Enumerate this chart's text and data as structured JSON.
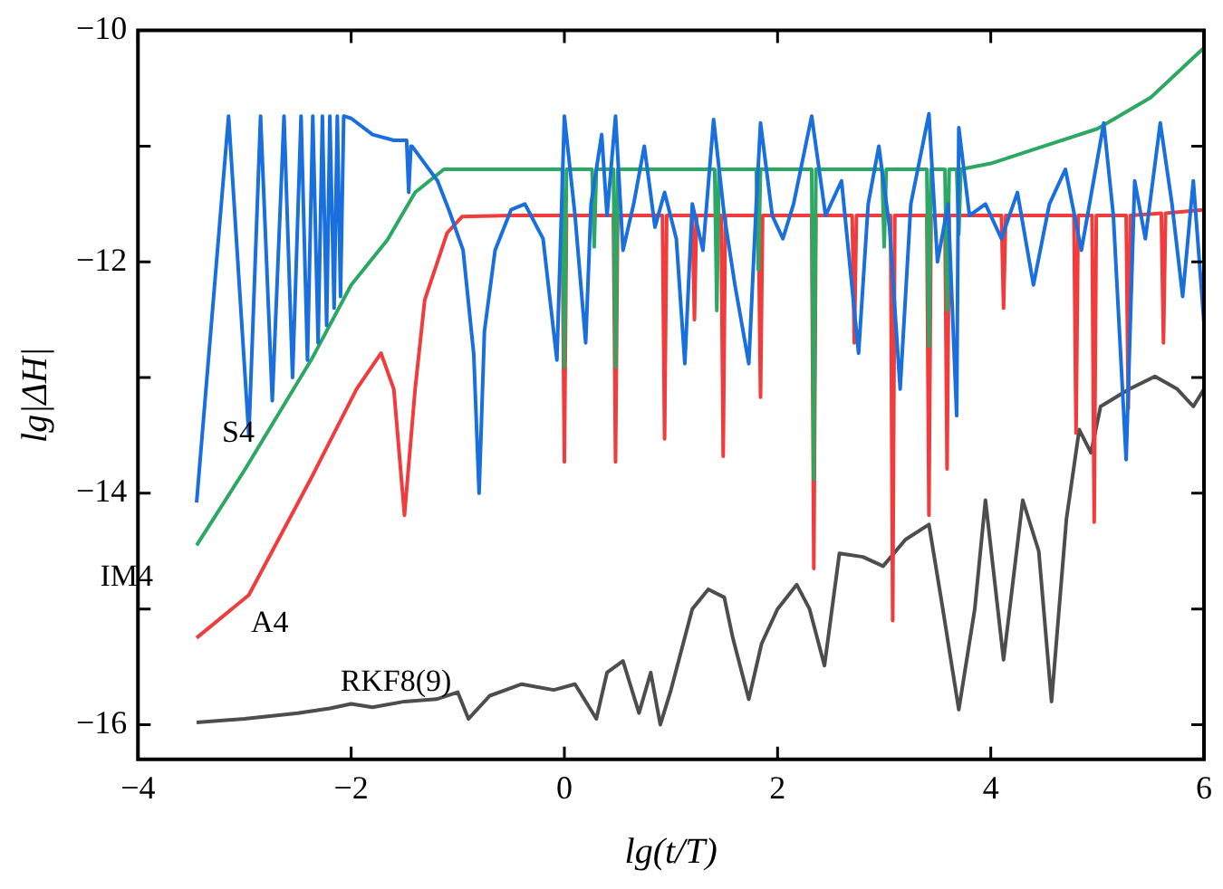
{
  "chart_data": {
    "type": "line",
    "xlabel": "lg(t/T)",
    "ylabel": "lg|ΔH|",
    "xlim": [
      -4,
      6
    ],
    "xticks": [
      -4,
      -2,
      0,
      2,
      4,
      6
    ],
    "ylim": [
      -16.3,
      -10
    ],
    "yticks": [
      -10,
      {
        "value": -11,
        "label": null
      },
      -12,
      {
        "value": -13,
        "label": null
      },
      -14,
      {
        "value": -15,
        "label": null
      },
      -16
    ],
    "grid": false,
    "legend": false,
    "marker": "none",
    "line_style": "solid",
    "series": [
      {
        "name": "S4",
        "color": "#1a6fdf",
        "x": [
          -3.45,
          -3.15,
          -2.96,
          -2.85,
          -2.74,
          -2.63,
          -2.55,
          -2.47,
          -2.41,
          -2.36,
          -2.31,
          -2.27,
          -2.23,
          -2.2,
          -2.16,
          -2.13,
          -2.1,
          -2.07,
          -2.0,
          -1.8,
          -1.6,
          -1.48,
          -1.46,
          -1.44,
          -1.43,
          -1.19,
          -1.08,
          -0.95,
          -0.85,
          -0.8,
          -0.75,
          -0.65,
          -0.5,
          -0.37,
          -0.2,
          -0.07,
          0,
          0.1,
          0.2,
          0.25,
          0.35,
          0.4,
          0.48,
          0.55,
          0.65,
          0.75,
          0.85,
          0.94,
          1.05,
          1.13,
          1.2,
          1.3,
          1.4,
          1.5,
          1.6,
          1.73,
          1.8,
          1.84,
          1.95,
          2.05,
          2.15,
          2.32,
          2.45,
          2.6,
          2.76,
          2.85,
          2.95,
          3.05,
          3.15,
          3.25,
          3.42,
          3.5,
          3.6,
          3.68,
          3.7,
          3.8,
          3.95,
          4.1,
          4.25,
          4.4,
          4.55,
          4.7,
          4.85,
          5.06,
          5.15,
          5.27,
          5.35,
          5.45,
          5.59,
          5.7,
          5.8,
          5.9,
          6
        ],
        "values": [
          -14.08,
          -10.74,
          -13.5,
          -10.74,
          -13.2,
          -10.74,
          -13.0,
          -10.74,
          -12.85,
          -10.74,
          -12.7,
          -10.74,
          -12.55,
          -10.74,
          -12.4,
          -10.74,
          -12.3,
          -10.74,
          -10.76,
          -10.9,
          -10.95,
          -10.95,
          -11.4,
          -11.0,
          -11.0,
          -11.3,
          -11.56,
          -11.9,
          -12.8,
          -14.0,
          -12.6,
          -11.9,
          -11.55,
          -11.5,
          -11.8,
          -12.85,
          -10.74,
          -11.6,
          -12.7,
          -11.5,
          -10.9,
          -11.6,
          -10.74,
          -11.9,
          -11.5,
          -11.0,
          -11.7,
          -11.4,
          -11.8,
          -12.88,
          -11.5,
          -11.9,
          -10.77,
          -11.6,
          -12.2,
          -12.88,
          -11.5,
          -10.8,
          -11.6,
          -11.8,
          -11.5,
          -10.74,
          -11.6,
          -11.3,
          -12.79,
          -11.5,
          -11.0,
          -11.7,
          -13.1,
          -11.5,
          -10.72,
          -12.0,
          -11.5,
          -13.33,
          -10.84,
          -11.6,
          -11.5,
          -11.8,
          -11.4,
          -12.2,
          -11.5,
          -11.2,
          -11.9,
          -10.8,
          -11.6,
          -13.71,
          -11.3,
          -11.8,
          -10.8,
          -11.5,
          -12.3,
          -11.3,
          -12.53
        ]
      },
      {
        "name": "IM4",
        "color": "#2ca862",
        "x": [
          -3.45,
          -3.0,
          -2.37,
          -2.0,
          -1.66,
          -1.4,
          -1.13,
          -0.9,
          -0.02,
          0,
          0.02,
          0.26,
          0.28,
          0.3,
          0.46,
          0.48,
          0.5,
          1.41,
          1.43,
          1.45,
          1.8,
          1.82,
          1.84,
          2.32,
          2.34,
          2.36,
          2.98,
          3.0,
          3.02,
          3.4,
          3.42,
          3.44,
          3.57,
          3.59,
          3.61,
          3.68,
          3.7,
          3.72,
          4.0,
          4.5,
          5.0,
          5.5,
          6
        ],
        "values": [
          -14.45,
          -13.8,
          -12.84,
          -12.2,
          -11.81,
          -11.4,
          -11.2,
          -11.2,
          -11.2,
          -12.91,
          -11.2,
          -11.2,
          -11.87,
          -11.2,
          -11.2,
          -12.91,
          -11.2,
          -11.2,
          -12.42,
          -11.2,
          -11.2,
          -12.07,
          -11.2,
          -11.2,
          -13.88,
          -11.2,
          -11.2,
          -11.87,
          -11.2,
          -11.2,
          -12.73,
          -11.2,
          -11.2,
          -12.42,
          -11.2,
          -11.2,
          -11.76,
          -11.2,
          -11.15,
          -11.0,
          -10.85,
          -10.58,
          -10.15
        ]
      },
      {
        "name": "A4",
        "color": "#f03c3c",
        "x": [
          -3.45,
          -2.96,
          -2.37,
          -1.95,
          -1.72,
          -1.6,
          -1.5,
          -1.4,
          -1.31,
          -1.1,
          -0.96,
          -0.5,
          -0.02,
          0,
          0.02,
          0.46,
          0.48,
          0.5,
          0.92,
          0.94,
          0.96,
          1.2,
          1.22,
          1.24,
          1.47,
          1.49,
          1.51,
          1.82,
          1.84,
          1.86,
          2.32,
          2.34,
          2.36,
          2.7,
          2.72,
          2.74,
          3.06,
          3.08,
          3.1,
          3.4,
          3.42,
          3.44,
          3.57,
          3.59,
          3.61,
          4.1,
          4.12,
          4.14,
          4.78,
          4.8,
          4.82,
          4.95,
          4.97,
          4.99,
          5.27,
          5.29,
          5.31,
          5.6,
          5.62,
          5.64,
          6
        ],
        "values": [
          -15.25,
          -14.88,
          -13.86,
          -13.1,
          -12.79,
          -13.1,
          -14.19,
          -13.1,
          -12.33,
          -11.75,
          -11.61,
          -11.6,
          -11.6,
          -13.73,
          -11.6,
          -11.6,
          -13.73,
          -11.6,
          -11.6,
          -13.53,
          -11.6,
          -11.6,
          -12.5,
          -11.6,
          -11.6,
          -13.68,
          -11.6,
          -11.6,
          -13.17,
          -11.6,
          -11.6,
          -14.65,
          -11.6,
          -11.6,
          -12.7,
          -11.6,
          -11.6,
          -15.1,
          -11.6,
          -11.6,
          -14.19,
          -11.6,
          -11.6,
          -13.79,
          -11.6,
          -11.6,
          -12.4,
          -11.6,
          -11.6,
          -13.48,
          -11.6,
          -11.6,
          -14.25,
          -11.6,
          -11.6,
          -13.27,
          -11.6,
          -11.58,
          -12.7,
          -11.58,
          -11.55
        ]
      },
      {
        "name": "RKF8(9)",
        "color": "#4d4d4d",
        "x": [
          -3.45,
          -3.0,
          -2.5,
          -2.2,
          -2.0,
          -1.8,
          -1.5,
          -1.2,
          -1.0,
          -0.9,
          -0.7,
          -0.4,
          -0.1,
          0.1,
          0.3,
          0.4,
          0.55,
          0.7,
          0.81,
          0.9,
          1.0,
          1.2,
          1.35,
          1.5,
          1.58,
          1.73,
          1.85,
          2.0,
          2.18,
          2.3,
          2.44,
          2.58,
          2.8,
          2.99,
          3.2,
          3.42,
          3.55,
          3.7,
          3.85,
          3.95,
          4.12,
          4.3,
          4.45,
          4.57,
          4.71,
          4.83,
          4.94,
          5.03,
          5.3,
          5.54,
          5.75,
          5.9,
          6
        ],
        "values": [
          -15.98,
          -15.95,
          -15.9,
          -15.86,
          -15.82,
          -15.85,
          -15.8,
          -15.78,
          -15.72,
          -15.95,
          -15.75,
          -15.65,
          -15.7,
          -15.65,
          -15.95,
          -15.55,
          -15.45,
          -15.9,
          -15.55,
          -16.0,
          -15.7,
          -15.0,
          -14.83,
          -14.9,
          -15.25,
          -15.78,
          -15.3,
          -15.0,
          -14.79,
          -15.0,
          -15.49,
          -14.52,
          -14.55,
          -14.63,
          -14.4,
          -14.27,
          -15.0,
          -15.87,
          -15.0,
          -14.06,
          -15.44,
          -14.06,
          -14.5,
          -15.8,
          -14.22,
          -13.45,
          -13.65,
          -13.25,
          -13.1,
          -12.99,
          -13.1,
          -13.25,
          -13.1
        ]
      }
    ]
  }
}
